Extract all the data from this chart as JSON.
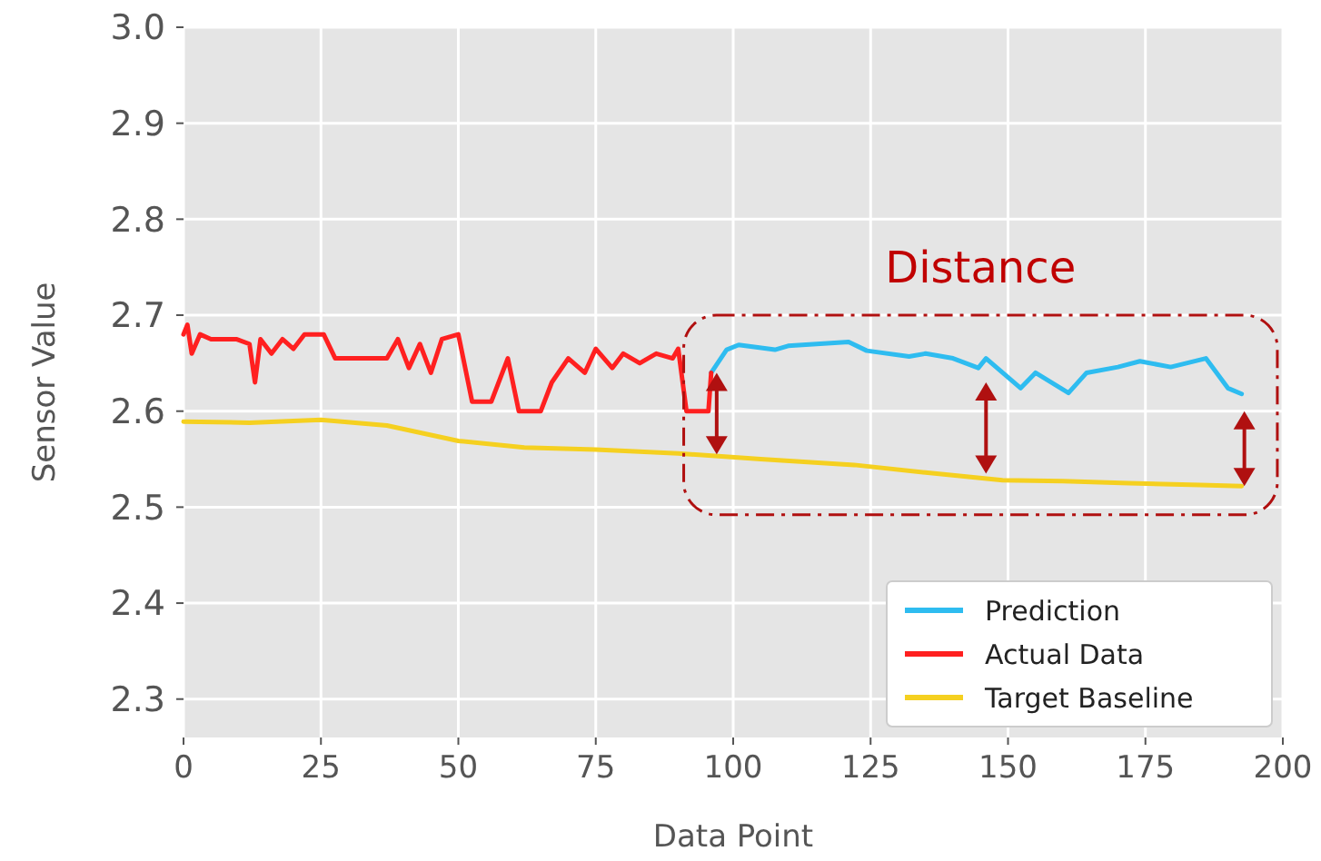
{
  "chart_data": {
    "type": "line",
    "xlabel": "Data Point",
    "ylabel": "Sensor Value",
    "xlim": [
      0,
      200
    ],
    "ylim": [
      2.26,
      3.0
    ],
    "xticks": [
      0,
      25,
      50,
      75,
      100,
      125,
      150,
      175,
      200
    ],
    "yticks": [
      2.3,
      2.4,
      2.5,
      2.6,
      2.7,
      2.8,
      2.9,
      {
        "value": 3.0,
        "label": "3.0"
      }
    ],
    "grid": true,
    "legend": "bottom right",
    "line_style": "solid",
    "marker": "none",
    "series": [
      {
        "name": "Prediction",
        "color": "#2ebcf0",
        "x": [
          96,
          98.8,
          101,
          107.6,
          110,
          121,
          124.3,
          132,
          135,
          140,
          144.6,
          146,
          152.3,
          155,
          161,
          164.3,
          170,
          174,
          179.6,
          186,
          190,
          192.5
        ],
        "values": [
          2.64,
          2.664,
          2.669,
          2.664,
          2.668,
          2.672,
          2.663,
          2.657,
          2.66,
          2.655,
          2.645,
          2.655,
          2.624,
          2.64,
          2.619,
          2.64,
          2.646,
          2.652,
          2.646,
          2.655,
          2.624,
          2.618
        ]
      },
      {
        "name": "Actual Data",
        "color": "#ff2020",
        "x": [
          0,
          0.7,
          1.5,
          3,
          5,
          9.6,
          12,
          13,
          14,
          16,
          18,
          20,
          22,
          25.5,
          27.6,
          30,
          37,
          39,
          41,
          43,
          45,
          47,
          50,
          52.5,
          56,
          59,
          61,
          65,
          67,
          70,
          73,
          75,
          78,
          80,
          83,
          86,
          89,
          90,
          91.5,
          95.5,
          96
        ],
        "values": [
          2.68,
          2.69,
          2.66,
          2.68,
          2.675,
          2.675,
          2.67,
          2.63,
          2.675,
          2.66,
          2.675,
          2.665,
          2.68,
          2.68,
          2.655,
          2.655,
          2.655,
          2.675,
          2.645,
          2.67,
          2.64,
          2.675,
          2.68,
          2.61,
          2.61,
          2.655,
          2.6,
          2.6,
          2.63,
          2.655,
          2.64,
          2.665,
          2.645,
          2.66,
          2.65,
          2.66,
          2.655,
          2.665,
          2.6,
          2.6,
          2.64
        ]
      },
      {
        "name": "Target Baseline",
        "color": "#f5d020",
        "x": [
          0,
          12,
          25,
          37,
          50,
          62,
          75,
          90,
          105,
          122,
          135,
          149,
          160,
          172,
          185,
          192.5
        ],
        "values": [
          2.589,
          2.588,
          2.591,
          2.585,
          2.569,
          2.562,
          2.56,
          2.556,
          2.55,
          2.544,
          2.536,
          2.528,
          2.527,
          2.525,
          2.523,
          2.522
        ]
      }
    ],
    "annotations": [
      "Distance"
    ]
  }
}
